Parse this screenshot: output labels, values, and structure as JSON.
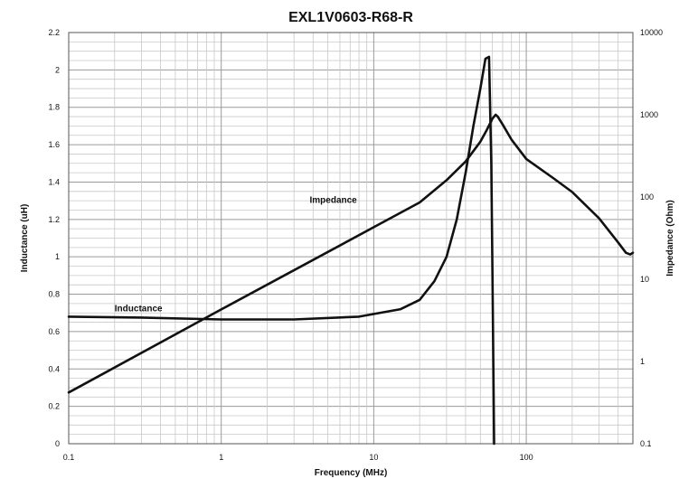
{
  "chart_data": {
    "type": "line",
    "title": "EXL1V0603-R68-R",
    "xlabel": "Frequency (MHz)",
    "ylabel": "Inductance (uH)",
    "y2label": "Impedance (Ohm)",
    "xscale": "log",
    "xlim": [
      0.1,
      500
    ],
    "ylim": [
      0,
      2.2
    ],
    "y2scale": "log",
    "y2lim": [
      0.1,
      10000
    ],
    "x_tick_labels": [
      "0.1",
      "1",
      "10",
      "100"
    ],
    "y_tick_labels": [
      "0",
      "0.2",
      "0.4",
      "0.6",
      "0.8",
      "1",
      "1.2",
      "1.4",
      "1.6",
      "1.8",
      "2",
      "2.2"
    ],
    "y2_tick_labels": [
      "0.1",
      "1",
      "10",
      "100",
      "1000",
      "10000"
    ],
    "grid": true,
    "series": [
      {
        "name": "Inductance",
        "axis": "left",
        "x": [
          0.1,
          0.3,
          1,
          3,
          8,
          15,
          20,
          25,
          30,
          35,
          40,
          45,
          50,
          54,
          57,
          59,
          60,
          61,
          61.5
        ],
        "y": [
          0.68,
          0.675,
          0.665,
          0.665,
          0.68,
          0.72,
          0.77,
          0.87,
          1.0,
          1.2,
          1.45,
          1.7,
          1.9,
          2.06,
          2.07,
          1.5,
          0.9,
          0.3,
          0.0
        ]
      },
      {
        "name": "Impedance",
        "axis": "right",
        "x": [
          0.1,
          1,
          10,
          20,
          30,
          40,
          50,
          55,
          60,
          63,
          65,
          70,
          80,
          100,
          150,
          200,
          300,
          400,
          450,
          480,
          500
        ],
        "y": [
          0.42,
          4.3,
          43,
          86,
          160,
          270,
          470,
          650,
          900,
          1000,
          950,
          760,
          500,
          290,
          170,
          115,
          55,
          28,
          21,
          20,
          21
        ]
      }
    ],
    "annotations": [
      {
        "text": "Inductance",
        "x": 0.2,
        "y": 0.69
      },
      {
        "text": "Impedance",
        "x": 3.8,
        "y": 1.27
      }
    ]
  }
}
